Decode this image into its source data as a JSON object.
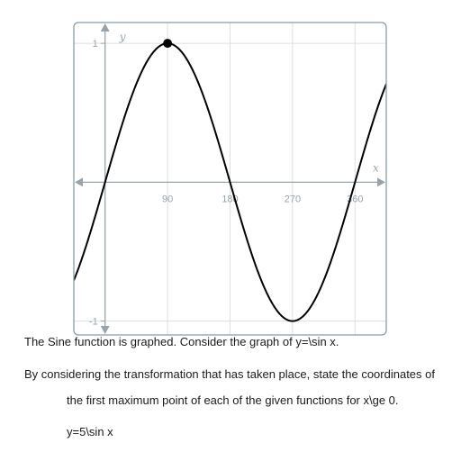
{
  "chart_data": {
    "type": "line",
    "title": "",
    "xlabel": "x",
    "ylabel": "y",
    "xlim": [
      -45,
      405
    ],
    "ylim": [
      -1.1,
      1.15
    ],
    "x_ticks": [
      90,
      180,
      270,
      360
    ],
    "x_tick_labels": [
      "90",
      "180",
      "270",
      "360"
    ],
    "y_ticks": [
      1,
      -1
    ],
    "y_tick_labels": [
      "1",
      "-1"
    ],
    "grid": true,
    "legend": "none",
    "series": [
      {
        "function": "sin",
        "x_range": [
          -45,
          405
        ],
        "color": "#000000"
      }
    ],
    "highlighted_points": [
      {
        "x": 90,
        "y": 1
      }
    ]
  },
  "question": {
    "caption": "The Sine function is graphed. Consider the graph of y=\\sin x.",
    "instruction_line1": "By considering the transformation that has taken place, state the coordinates of",
    "instruction_line2": "the first maximum point of each of the given functions for x\\ge 0.",
    "function_item": "y=5\\sin x"
  },
  "colors": {
    "frame": "#8a9aa6",
    "grid": "#dcdfe2",
    "axis": "#9aa3a9",
    "curve": "#000000",
    "point": "#000000",
    "tick_label": "#9aa3a9"
  }
}
